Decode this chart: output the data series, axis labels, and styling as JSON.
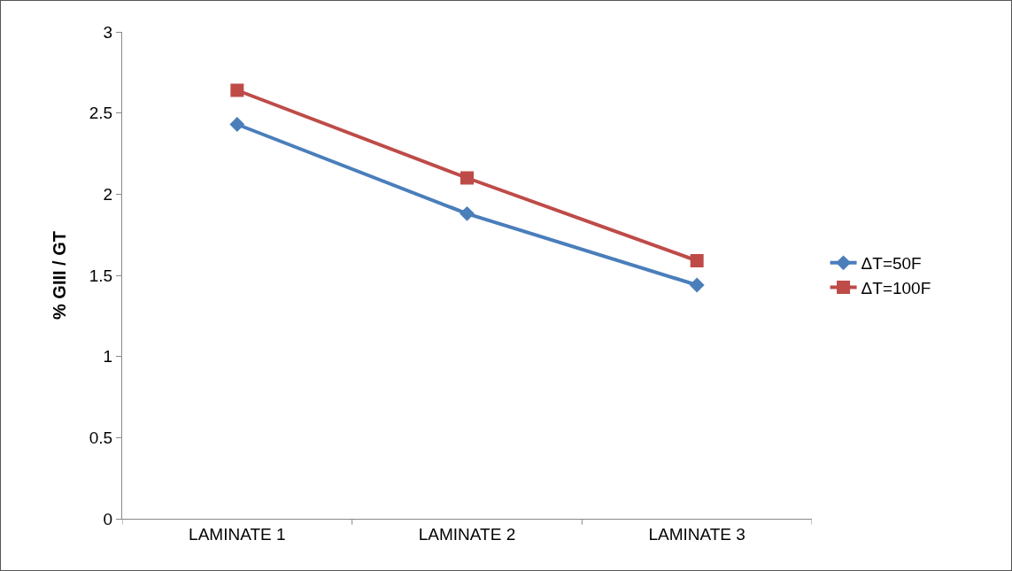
{
  "chart_data": {
    "type": "line",
    "ylabel": "% GIII / GT",
    "categories": [
      "LAMINATE 1",
      "LAMINATE 2",
      "LAMINATE 3"
    ],
    "series": [
      {
        "name": "ΔT=50F",
        "color": "#4a7ebb",
        "values": [
          2.43,
          1.88,
          1.44
        ],
        "marker": "diamond"
      },
      {
        "name": "ΔT=100F",
        "color": "#be4b48",
        "values": [
          2.64,
          2.1,
          1.59
        ],
        "marker": "square"
      }
    ],
    "ylim": [
      0,
      3
    ],
    "yticks": [
      0,
      0.5,
      1,
      1.5,
      2,
      2.5,
      3
    ],
    "grid": false,
    "legend": "right",
    "line_style": "solid"
  }
}
